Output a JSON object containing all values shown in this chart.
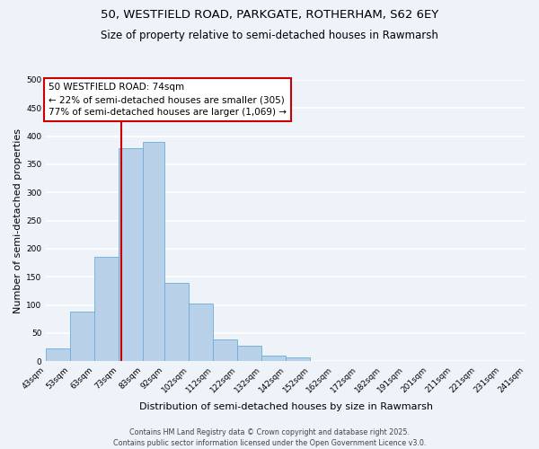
{
  "title_line1": "50, WESTFIELD ROAD, PARKGATE, ROTHERHAM, S62 6EY",
  "title_line2": "Size of property relative to semi-detached houses in Rawmarsh",
  "xlabel": "Distribution of semi-detached houses by size in Rawmarsh",
  "ylabel": "Number of semi-detached properties",
  "bar_color": "#b8d0e8",
  "bar_edge_color": "#6aaed6",
  "vline_color": "#cc0000",
  "vline_x": 74,
  "annotation_box_color": "#cc0000",
  "annotation_text_line1": "50 WESTFIELD ROAD: 74sqm",
  "annotation_text_line2": "← 22% of semi-detached houses are smaller (305)",
  "annotation_text_line3": "77% of semi-detached houses are larger (1,069) →",
  "bin_edges": [
    43,
    53,
    63,
    73,
    83,
    92,
    102,
    112,
    122,
    132,
    142,
    152,
    162,
    172,
    182,
    191,
    201,
    211,
    221,
    231,
    241
  ],
  "bin_labels": [
    "43sqm",
    "53sqm",
    "63sqm",
    "73sqm",
    "83sqm",
    "92sqm",
    "102sqm",
    "112sqm",
    "122sqm",
    "132sqm",
    "142sqm",
    "152sqm",
    "162sqm",
    "172sqm",
    "182sqm",
    "191sqm",
    "201sqm",
    "211sqm",
    "221sqm",
    "231sqm",
    "241sqm"
  ],
  "bar_heights": [
    23,
    88,
    185,
    378,
    390,
    140,
    103,
    38,
    28,
    10,
    6,
    1,
    0,
    0,
    0,
    0,
    0,
    0,
    0,
    0
  ],
  "ylim": [
    0,
    500
  ],
  "yticks": [
    0,
    50,
    100,
    150,
    200,
    250,
    300,
    350,
    400,
    450,
    500
  ],
  "background_color": "#eef2f9",
  "grid_color": "#ffffff",
  "footer_text": "Contains HM Land Registry data © Crown copyright and database right 2025.\nContains public sector information licensed under the Open Government Licence v3.0.",
  "title_fontsize": 9.5,
  "subtitle_fontsize": 8.5,
  "axis_label_fontsize": 8,
  "tick_fontsize": 6.5,
  "annotation_fontsize": 7.5,
  "footer_fontsize": 5.8
}
